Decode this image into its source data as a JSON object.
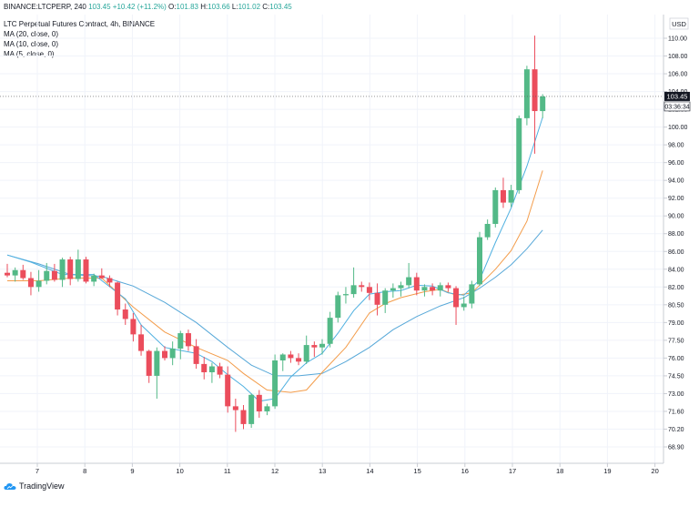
{
  "header": {
    "symbol": "BINANCE:LTCPERP, 240",
    "last": "103.45",
    "change": "+10.42 (+11.2%)",
    "o_label": "O:",
    "o_val": "101.83",
    "h_label": "H:",
    "h_val": "103.66",
    "l_label": "L:",
    "l_val": "101.02",
    "c_label": "C:",
    "c_val": "103.45",
    "line2": "LTC Perpetual Futures Contract, 4h, BINANCE",
    "line3": "MA (20, close, 0)",
    "line4": "MA (10, close, 0)",
    "line5": "MA (5, close, 0)"
  },
  "footer": {
    "brand": "TradingView"
  },
  "colors": {
    "up": "#53b987",
    "down": "#eb4d5c",
    "ma5": "#4fb0e0",
    "ma10": "#f39c4a",
    "ma20": "#57a8d8"
  },
  "chart_data": {
    "type": "candlestick",
    "x_ticks": [
      "7",
      "8",
      "9",
      "10",
      "11",
      "12",
      "13",
      "14",
      "15",
      "16",
      "17",
      "18",
      "19",
      "20"
    ],
    "y_ticks": [
      "110.00",
      "108.00",
      "106.00",
      "104.00",
      "102.00",
      "100.00",
      "98.00",
      "96.00",
      "94.00",
      "92.00",
      "90.00",
      "88.00",
      "86.00",
      "84.00",
      "82.00",
      "80.50",
      "79.00",
      "77.50",
      "76.00",
      "74.50",
      "73.00",
      "71.60",
      "70.20",
      "68.90"
    ],
    "currency": "USD",
    "last_price_label": "103.45",
    "countdown": "03:36:34",
    "candles": [
      {
        "o": 83.6,
        "h": 84.6,
        "l": 83.1,
        "c": 83.3
      },
      {
        "o": 83.3,
        "h": 84.2,
        "l": 82.6,
        "c": 83.9
      },
      {
        "o": 83.9,
        "h": 84.5,
        "l": 82.8,
        "c": 83.0
      },
      {
        "o": 83.0,
        "h": 83.7,
        "l": 81.3,
        "c": 82.0
      },
      {
        "o": 82.0,
        "h": 83.9,
        "l": 81.6,
        "c": 82.7
      },
      {
        "o": 82.7,
        "h": 84.7,
        "l": 82.3,
        "c": 83.8
      },
      {
        "o": 83.8,
        "h": 84.6,
        "l": 82.6,
        "c": 82.8
      },
      {
        "o": 82.8,
        "h": 85.3,
        "l": 82.0,
        "c": 85.1
      },
      {
        "o": 85.1,
        "h": 85.4,
        "l": 82.2,
        "c": 82.9
      },
      {
        "o": 82.9,
        "h": 86.2,
        "l": 82.6,
        "c": 85.1
      },
      {
        "o": 85.1,
        "h": 85.4,
        "l": 82.4,
        "c": 82.6
      },
      {
        "o": 82.6,
        "h": 83.5,
        "l": 82.1,
        "c": 83.3
      },
      {
        "o": 83.3,
        "h": 84.1,
        "l": 82.9,
        "c": 83.0
      },
      {
        "o": 83.0,
        "h": 83.3,
        "l": 82.0,
        "c": 82.5
      },
      {
        "o": 82.5,
        "h": 82.6,
        "l": 79.6,
        "c": 80.1
      },
      {
        "o": 80.1,
        "h": 80.6,
        "l": 78.8,
        "c": 79.3
      },
      {
        "o": 79.3,
        "h": 79.8,
        "l": 77.4,
        "c": 78.0
      },
      {
        "o": 78.0,
        "h": 78.8,
        "l": 76.2,
        "c": 76.6
      },
      {
        "o": 76.6,
        "h": 76.7,
        "l": 73.9,
        "c": 74.5
      },
      {
        "o": 74.5,
        "h": 76.9,
        "l": 72.6,
        "c": 76.6
      },
      {
        "o": 76.6,
        "h": 77.0,
        "l": 75.8,
        "c": 76.0
      },
      {
        "o": 76.0,
        "h": 77.4,
        "l": 75.4,
        "c": 76.8
      },
      {
        "o": 76.8,
        "h": 78.3,
        "l": 75.9,
        "c": 78.1
      },
      {
        "o": 78.1,
        "h": 78.4,
        "l": 76.6,
        "c": 77.0
      },
      {
        "o": 77.0,
        "h": 77.6,
        "l": 75.1,
        "c": 75.5
      },
      {
        "o": 75.5,
        "h": 76.1,
        "l": 74.2,
        "c": 74.8
      },
      {
        "o": 74.8,
        "h": 75.6,
        "l": 73.9,
        "c": 75.3
      },
      {
        "o": 75.3,
        "h": 75.6,
        "l": 74.3,
        "c": 74.6
      },
      {
        "o": 74.6,
        "h": 75.3,
        "l": 71.5,
        "c": 72.0
      },
      {
        "o": 72.0,
        "h": 72.6,
        "l": 70.0,
        "c": 71.7
      },
      {
        "o": 71.7,
        "h": 72.1,
        "l": 70.2,
        "c": 70.6
      },
      {
        "o": 70.6,
        "h": 73.0,
        "l": 70.3,
        "c": 72.9
      },
      {
        "o": 72.9,
        "h": 73.3,
        "l": 71.1,
        "c": 71.6
      },
      {
        "o": 71.6,
        "h": 72.2,
        "l": 71.3,
        "c": 72.0
      },
      {
        "o": 72.0,
        "h": 76.3,
        "l": 71.8,
        "c": 75.8
      },
      {
        "o": 75.8,
        "h": 76.4,
        "l": 74.9,
        "c": 76.3
      },
      {
        "o": 76.3,
        "h": 76.6,
        "l": 75.6,
        "c": 76.0
      },
      {
        "o": 76.0,
        "h": 76.4,
        "l": 75.4,
        "c": 75.7
      },
      {
        "o": 75.7,
        "h": 77.9,
        "l": 75.5,
        "c": 77.1
      },
      {
        "o": 77.1,
        "h": 77.4,
        "l": 76.1,
        "c": 76.9
      },
      {
        "o": 76.9,
        "h": 77.6,
        "l": 76.3,
        "c": 77.2
      },
      {
        "o": 77.2,
        "h": 79.9,
        "l": 76.9,
        "c": 79.4
      },
      {
        "o": 79.4,
        "h": 81.6,
        "l": 79.0,
        "c": 81.3
      },
      {
        "o": 81.3,
        "h": 82.0,
        "l": 80.6,
        "c": 81.4
      },
      {
        "o": 81.4,
        "h": 84.2,
        "l": 81.1,
        "c": 82.2
      },
      {
        "o": 82.2,
        "h": 82.6,
        "l": 81.6,
        "c": 82.0
      },
      {
        "o": 82.0,
        "h": 82.5,
        "l": 80.9,
        "c": 81.5
      },
      {
        "o": 81.5,
        "h": 82.4,
        "l": 79.6,
        "c": 80.5
      },
      {
        "o": 80.5,
        "h": 81.9,
        "l": 79.8,
        "c": 81.7
      },
      {
        "o": 81.7,
        "h": 82.4,
        "l": 81.1,
        "c": 81.9
      },
      {
        "o": 81.9,
        "h": 82.6,
        "l": 81.2,
        "c": 82.2
      },
      {
        "o": 82.2,
        "h": 84.7,
        "l": 81.9,
        "c": 83.1
      },
      {
        "o": 83.1,
        "h": 83.6,
        "l": 81.3,
        "c": 81.7
      },
      {
        "o": 81.7,
        "h": 82.3,
        "l": 81.2,
        "c": 82.0
      },
      {
        "o": 82.0,
        "h": 82.4,
        "l": 81.3,
        "c": 81.7
      },
      {
        "o": 81.7,
        "h": 82.5,
        "l": 81.2,
        "c": 82.2
      },
      {
        "o": 82.2,
        "h": 82.5,
        "l": 81.6,
        "c": 81.9
      },
      {
        "o": 81.9,
        "h": 82.1,
        "l": 78.8,
        "c": 80.3
      },
      {
        "o": 80.3,
        "h": 81.2,
        "l": 80.0,
        "c": 80.6
      },
      {
        "o": 80.6,
        "h": 82.7,
        "l": 80.2,
        "c": 82.3
      },
      {
        "o": 82.3,
        "h": 88.2,
        "l": 82.1,
        "c": 87.6
      },
      {
        "o": 87.6,
        "h": 89.6,
        "l": 87.3,
        "c": 89.1
      },
      {
        "o": 89.1,
        "h": 93.2,
        "l": 88.7,
        "c": 92.9
      },
      {
        "o": 92.9,
        "h": 94.3,
        "l": 90.9,
        "c": 91.5
      },
      {
        "o": 91.5,
        "h": 93.5,
        "l": 91.0,
        "c": 92.9
      },
      {
        "o": 92.9,
        "h": 101.3,
        "l": 92.5,
        "c": 101.0
      },
      {
        "o": 101.0,
        "h": 106.9,
        "l": 100.2,
        "c": 106.5
      },
      {
        "o": 106.5,
        "h": 110.3,
        "l": 97.0,
        "c": 101.8
      },
      {
        "o": 101.8,
        "h": 103.7,
        "l": 101.0,
        "c": 103.45
      }
    ],
    "ma5": [
      [
        0,
        85.6
      ],
      [
        3,
        84.8
      ],
      [
        7,
        83.4
      ],
      [
        11,
        83.4
      ],
      [
        15,
        81.0
      ],
      [
        17,
        78.8
      ],
      [
        20,
        76.9
      ],
      [
        24,
        76.4
      ],
      [
        26,
        75.7
      ],
      [
        28,
        74.6
      ],
      [
        30,
        73.6
      ],
      [
        32,
        72.4
      ],
      [
        34,
        72.6
      ],
      [
        36,
        74.4
      ],
      [
        38,
        75.6
      ],
      [
        40,
        76.4
      ],
      [
        42,
        78.1
      ],
      [
        44,
        80.0
      ],
      [
        46,
        81.4
      ],
      [
        48,
        81.6
      ],
      [
        50,
        81.7
      ],
      [
        52,
        82.2
      ],
      [
        54,
        82.1
      ],
      [
        56,
        81.5
      ],
      [
        58,
        81.3
      ],
      [
        60,
        82.8
      ],
      [
        62,
        87.0
      ],
      [
        64,
        90.9
      ],
      [
        66,
        95.6
      ],
      [
        68,
        101.1
      ]
    ],
    "ma10": [
      [
        0,
        82.7
      ],
      [
        4,
        82.7
      ],
      [
        8,
        83.0
      ],
      [
        12,
        83.0
      ],
      [
        16,
        80.3
      ],
      [
        20,
        78.2
      ],
      [
        24,
        76.9
      ],
      [
        28,
        75.8
      ],
      [
        30,
        74.7
      ],
      [
        33,
        73.3
      ],
      [
        36,
        73.1
      ],
      [
        38,
        73.3
      ],
      [
        40,
        74.8
      ],
      [
        43,
        76.9
      ],
      [
        46,
        79.8
      ],
      [
        48,
        80.6
      ],
      [
        50,
        81.1
      ],
      [
        53,
        81.6
      ],
      [
        55,
        81.8
      ],
      [
        57,
        81.3
      ],
      [
        59,
        81.5
      ],
      [
        62,
        84.0
      ],
      [
        64,
        86.1
      ],
      [
        66,
        89.4
      ],
      [
        68,
        95.1
      ]
    ],
    "ma20": [
      [
        0,
        85.6
      ],
      [
        4,
        84.6
      ],
      [
        8,
        83.4
      ],
      [
        12,
        83.2
      ],
      [
        16,
        82.1
      ],
      [
        20,
        80.7
      ],
      [
        24,
        79.0
      ],
      [
        28,
        76.9
      ],
      [
        31,
        75.4
      ],
      [
        34,
        74.5
      ],
      [
        37,
        74.5
      ],
      [
        40,
        74.7
      ],
      [
        43,
        75.7
      ],
      [
        46,
        76.9
      ],
      [
        49,
        78.4
      ],
      [
        52,
        79.5
      ],
      [
        55,
        80.4
      ],
      [
        58,
        81.1
      ],
      [
        60,
        81.9
      ],
      [
        62,
        83.1
      ],
      [
        64,
        84.5
      ],
      [
        66,
        86.3
      ],
      [
        68,
        88.4
      ]
    ]
  }
}
